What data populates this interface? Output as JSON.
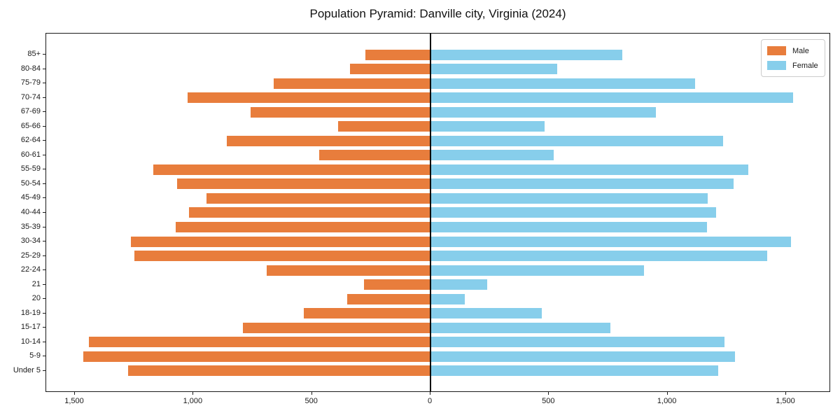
{
  "figure": {
    "title": "Population Pyramid: Danville city, Virginia (2024)"
  },
  "legend": {
    "items": [
      {
        "label": "Male",
        "color": "#E87D3C"
      },
      {
        "label": "Female",
        "color": "#87CEEB"
      }
    ]
  },
  "chart_data": {
    "type": "bar",
    "orientation": "horizontal",
    "subtype": "population-pyramid",
    "title": "Population Pyramid: Danville city, Virginia (2024)",
    "xlabel": "",
    "ylabel": "",
    "grid": false,
    "legend_position": "upper right",
    "xlim": [
      -1620,
      1690
    ],
    "categories_top_to_bottom": [
      "85+",
      "80-84",
      "75-79",
      "70-74",
      "67-69",
      "65-66",
      "62-64",
      "60-61",
      "55-59",
      "50-54",
      "45-49",
      "40-44",
      "35-39",
      "30-34",
      "25-29",
      "22-24",
      "21",
      "20",
      "18-19",
      "15-17",
      "10-14",
      "5-9",
      "Under 5"
    ],
    "series": [
      {
        "name": "Male",
        "side": "left",
        "color": "#E87D3C",
        "values": [
          275,
          340,
          660,
          1025,
          760,
          390,
          860,
          470,
          1170,
          1070,
          945,
          1020,
          1075,
          1265,
          1250,
          690,
          280,
          350,
          535,
          790,
          1440,
          1465,
          1275
        ]
      },
      {
        "name": "Female",
        "side": "right",
        "color": "#87CEEB",
        "values": [
          810,
          535,
          1115,
          1530,
          950,
          480,
          1235,
          520,
          1340,
          1280,
          1170,
          1205,
          1165,
          1520,
          1420,
          900,
          240,
          145,
          470,
          760,
          1240,
          1285,
          1215
        ]
      }
    ],
    "x_ticks": [
      {
        "value": -1500,
        "label": "1,500"
      },
      {
        "value": -1000,
        "label": "1,000"
      },
      {
        "value": -500,
        "label": "500"
      },
      {
        "value": 0,
        "label": "0"
      },
      {
        "value": 500,
        "label": "500"
      },
      {
        "value": 1000,
        "label": "1,000"
      },
      {
        "value": 1500,
        "label": "1,500"
      }
    ]
  }
}
